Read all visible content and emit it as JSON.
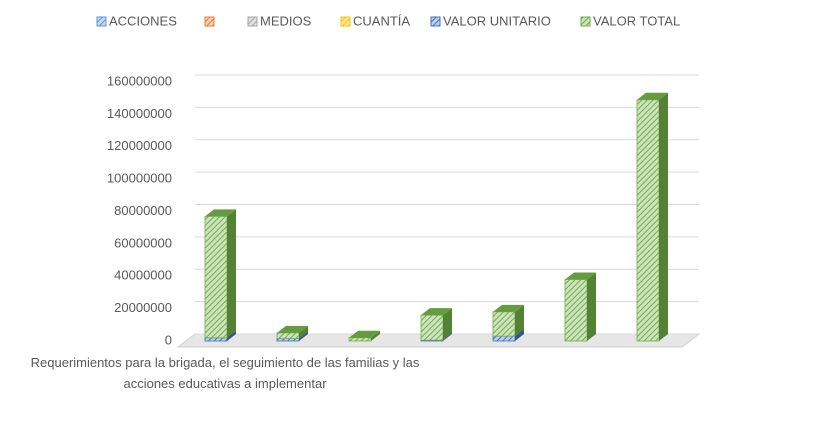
{
  "chart_data": {
    "type": "bar3d_stacked",
    "categories": [
      "Requerimientos para la brigada, el seguimiento de las familias y las acciones educativas a implementar",
      null,
      null,
      null,
      null,
      null,
      null
    ],
    "series": [
      {
        "name": "ACCIONES",
        "color": "#5b9bd5",
        "values": [
          null,
          null,
          null,
          null,
          null,
          null,
          null
        ]
      },
      {
        "name": null,
        "color": "#ed7d31",
        "values": [
          null,
          null,
          null,
          null,
          null,
          null,
          null
        ]
      },
      {
        "name": "MEDIOS",
        "color": "#a5a5a5",
        "values": [
          null,
          null,
          null,
          null,
          null,
          null,
          null
        ]
      },
      {
        "name": "CUANTÍA",
        "color": "#ffc000",
        "values": [
          null,
          null,
          null,
          null,
          null,
          null,
          null
        ]
      },
      {
        "name": "VALOR UNITARIO",
        "color": "#4472c4",
        "values": [
          2000000,
          1500000,
          null,
          500000,
          3000000,
          null,
          null
        ]
      },
      {
        "name": "VALOR TOTAL",
        "color": "#70ad47",
        "values": [
          75000000,
          3500000,
          2000000,
          15500000,
          15000000,
          38000000,
          149000000
        ]
      }
    ],
    "ylim": [
      0,
      160000000
    ],
    "yticks": [
      0,
      20000000,
      40000000,
      60000000,
      80000000,
      100000000,
      120000000,
      140000000,
      160000000
    ],
    "grid": true,
    "legend": "top"
  }
}
